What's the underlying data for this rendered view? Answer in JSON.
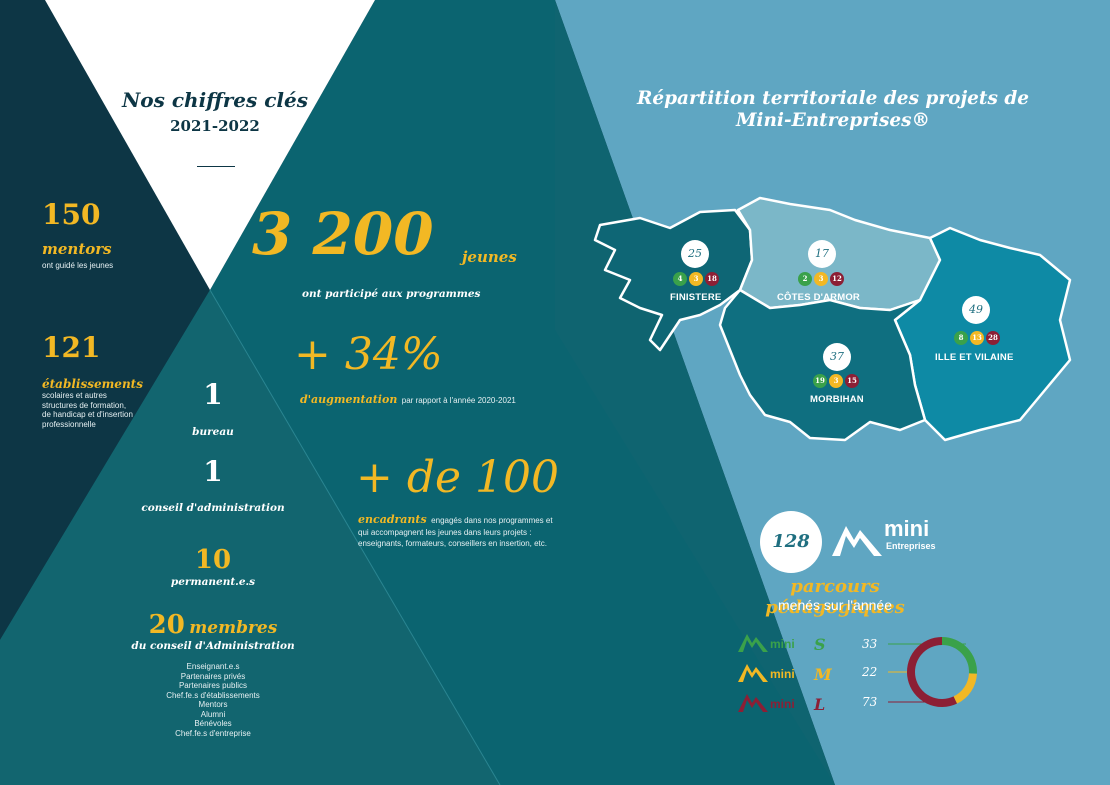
{
  "left": {
    "title": "Nos chiffres clés",
    "year": "2021-2022",
    "mentors": {
      "value": "150",
      "unit": "mentors",
      "desc": "ont guidé les jeunes"
    },
    "etablissements": {
      "value": "121",
      "unit": "établissements",
      "desc": "scolaires et autres structures de formation, de handicap et d'insertion professionnelle"
    },
    "bureau": {
      "value": "1",
      "label": "bureau"
    },
    "conseil": {
      "value": "1",
      "label": "conseil d'administration"
    },
    "permanents": {
      "value": "10",
      "label": "permanent.e.s"
    },
    "membres": {
      "value": "20",
      "unit": "membres",
      "label": "du conseil d'Administration"
    },
    "membres_list": [
      "Enseignant.e.s",
      "Partenaires privés",
      "Partenaires publics",
      "Chef.fe.s d'établissements",
      "Mentors",
      "Alumni",
      "Bénévoles",
      "Chef.fe.s d'entreprise"
    ]
  },
  "center": {
    "jeunes": {
      "value": "3 200",
      "unit": "jeunes",
      "desc": "ont participé aux programmes"
    },
    "augmentation": {
      "value": "+ 34%",
      "unit": "d'augmentation",
      "desc": "par rapport à l'année 2020-2021"
    },
    "encadrants": {
      "value": "+ de 100",
      "unit": "encadrants",
      "desc": "engagés dans nos programmes et qui accompagnent les jeunes dans leurs projets : enseignants, formateurs, conseillers en insertion, etc."
    }
  },
  "right": {
    "title_line1": "Répartition territoriale des projets de",
    "title_line2": "Mini-Entreprises®",
    "departments": [
      {
        "name": "FINISTERE",
        "total": "25",
        "counts": [
          "4",
          "3",
          "18"
        ]
      },
      {
        "name": "CÔTES D'ARMOR",
        "total": "17",
        "counts": [
          "2",
          "3",
          "12"
        ]
      },
      {
        "name": "ILLE ET VILAINE",
        "total": "49",
        "counts": [
          "8",
          "13",
          "28"
        ]
      },
      {
        "name": "MORBIHAN",
        "total": "37",
        "counts": [
          "19",
          "3",
          "15"
        ]
      }
    ],
    "total": "128",
    "logo_text": "mini",
    "logo_sub": "Entreprises",
    "parcours_label": "parcours pédagogiques",
    "parcours_desc": "menés sur l'année",
    "programs": [
      {
        "letter": "S",
        "value": "33",
        "color": "#3aa14a"
      },
      {
        "letter": "M",
        "value": "22",
        "color": "#f2b824"
      },
      {
        "letter": "L",
        "value": "73",
        "color": "#8c1f35"
      }
    ],
    "colors": {
      "green": "#3aa14a",
      "gold": "#f2b824",
      "red": "#8c1f35"
    }
  }
}
